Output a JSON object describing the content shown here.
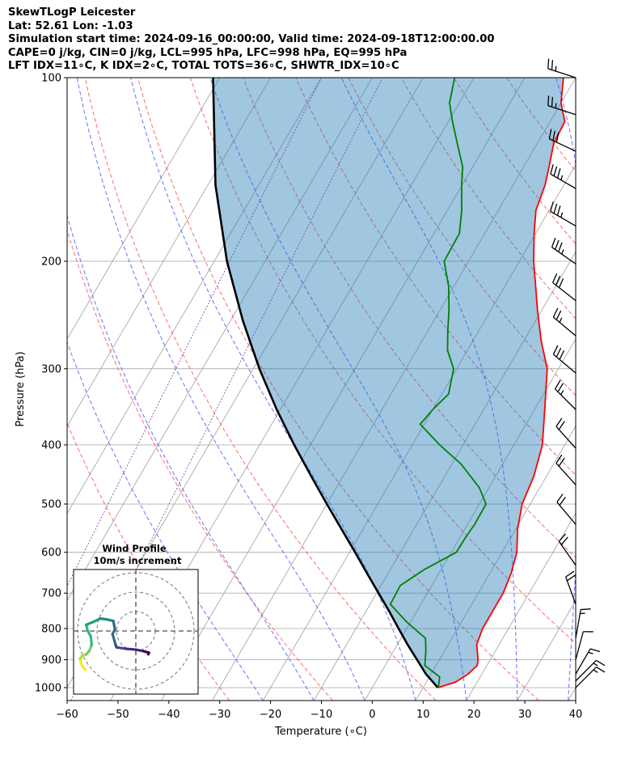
{
  "header": {
    "title": "SkewTLogP Leicester",
    "latlon": "Lat: 52.61   Lon: -1.03",
    "times": "Simulation start time: 2024-09-16_00:00:00, Valid time: 2024-09-18T12:00:00.00",
    "indices1": "CAPE=0 j/kg, CIN=0 j/kg, LCL=995 hPa, LFC=998 hPa, EQ=995 hPa",
    "indices2": "LFT IDX=11∘C, K IDX=2∘C, TOTAL TOTS=36∘C, SHWTR_IDX=10∘C"
  },
  "chart_data": {
    "type": "skewt",
    "xlabel": "Temperature (∘C)",
    "ylabel": "Pressure (hPa)",
    "xlim": [
      -60,
      40
    ],
    "ylim": [
      1050,
      100
    ],
    "x_ticks": [
      -60,
      -50,
      -40,
      -30,
      -20,
      -10,
      0,
      10,
      20,
      30,
      40
    ],
    "x_tick_labels": [
      "−60",
      "−50",
      "−40",
      "−30",
      "−20",
      "−10",
      "0",
      "10",
      "20",
      "30",
      "40"
    ],
    "y_ticks": [
      1000,
      900,
      800,
      700,
      600,
      500,
      400,
      300,
      200,
      100
    ],
    "y_tick_labels": [
      "1000",
      "900",
      "800",
      "700",
      "600",
      "500",
      "400",
      "300",
      "200",
      "100"
    ],
    "skew_ref_pressure": 1000,
    "skew_deg_per_decade": 70,
    "temperature": {
      "color": "#ff0000",
      "points": [
        [
          1000,
          12.9
        ],
        [
          980,
          15.7
        ],
        [
          950,
          17.3
        ],
        [
          920,
          18.1
        ],
        [
          900,
          17.6
        ],
        [
          850,
          15.6
        ],
        [
          800,
          14.9
        ],
        [
          700,
          14.9
        ],
        [
          650,
          14.2
        ],
        [
          600,
          12.9
        ],
        [
          550,
          10.4
        ],
        [
          500,
          8.4
        ],
        [
          450,
          7.5
        ],
        [
          400,
          5.6
        ],
        [
          350,
          2.0
        ],
        [
          300,
          -2.2
        ],
        [
          270,
          -6.6
        ],
        [
          240,
          -10.9
        ],
        [
          220,
          -13.9
        ],
        [
          200,
          -17.2
        ],
        [
          180,
          -20.3
        ],
        [
          165,
          -22.6
        ],
        [
          150,
          -23.7
        ],
        [
          140,
          -25.0
        ],
        [
          128,
          -26.8
        ],
        [
          118,
          -27.1
        ],
        [
          110,
          -30.0
        ],
        [
          100,
          -32.4
        ]
      ]
    },
    "dewpoint": {
      "color": "#008000",
      "points": [
        [
          1000,
          13.0
        ],
        [
          960,
          12.0
        ],
        [
          920,
          7.8
        ],
        [
          870,
          6.3
        ],
        [
          830,
          4.8
        ],
        [
          780,
          -0.8
        ],
        [
          730,
          -6.0
        ],
        [
          680,
          -6.2
        ],
        [
          640,
          -3.3
        ],
        [
          600,
          1.0
        ],
        [
          570,
          1.1
        ],
        [
          540,
          1.4
        ],
        [
          500,
          1.3
        ],
        [
          470,
          -1.9
        ],
        [
          430,
          -8.2
        ],
        [
          400,
          -14.6
        ],
        [
          370,
          -20.8
        ],
        [
          350,
          -20.0
        ],
        [
          330,
          -18.7
        ],
        [
          300,
          -20.6
        ],
        [
          280,
          -23.9
        ],
        [
          260,
          -26.1
        ],
        [
          240,
          -28.3
        ],
        [
          220,
          -31.0
        ],
        [
          200,
          -34.8
        ],
        [
          180,
          -35.0
        ],
        [
          165,
          -37.2
        ],
        [
          150,
          -40.1
        ],
        [
          140,
          -42.0
        ],
        [
          128,
          -45.8
        ],
        [
          118,
          -49.2
        ],
        [
          110,
          -51.9
        ],
        [
          100,
          -53.8
        ]
      ]
    },
    "parcel": {
      "color": "#000000",
      "points": [
        [
          1000,
          12.9
        ],
        [
          950,
          9.0
        ],
        [
          900,
          5.6
        ],
        [
          850,
          2.0
        ],
        [
          800,
          -1.6
        ],
        [
          750,
          -5.4
        ],
        [
          700,
          -9.6
        ],
        [
          650,
          -14.1
        ],
        [
          600,
          -18.9
        ],
        [
          550,
          -24.2
        ],
        [
          500,
          -30.0
        ],
        [
          450,
          -36.3
        ],
        [
          400,
          -43.2
        ],
        [
          350,
          -50.7
        ],
        [
          300,
          -58.8
        ],
        [
          250,
          -67.6
        ],
        [
          200,
          -77.5
        ],
        [
          150,
          -88.5
        ],
        [
          100,
          -101.3
        ]
      ]
    },
    "cape_shading": {
      "color": "#1f77b4",
      "opacity": 0.42
    },
    "dry_adiabats_theta_c": [
      -30,
      -10,
      10,
      30,
      50,
      70,
      90,
      110,
      130,
      150,
      170
    ],
    "moist_adiabats_start_c": [
      -20,
      -10,
      0,
      10,
      20,
      30,
      40
    ],
    "isotherm_ticks_c": [
      -100,
      -90,
      -80,
      -70,
      -60,
      -50,
      -40,
      -30,
      -20,
      -10,
      0,
      10,
      20,
      30,
      40
    ],
    "wind_barbs": [
      {
        "p": 100,
        "spd": 27,
        "dir": 288
      },
      {
        "p": 115,
        "spd": 27,
        "dir": 288
      },
      {
        "p": 132,
        "spd": 32,
        "dir": 295
      },
      {
        "p": 152,
        "spd": 38,
        "dir": 300
      },
      {
        "p": 175,
        "spd": 38,
        "dir": 300
      },
      {
        "p": 202,
        "spd": 36,
        "dir": 305
      },
      {
        "p": 232,
        "spd": 32,
        "dir": 308
      },
      {
        "p": 265,
        "spd": 27,
        "dir": 310
      },
      {
        "p": 305,
        "spd": 33,
        "dir": 310
      },
      {
        "p": 350,
        "spd": 27,
        "dir": 315
      },
      {
        "p": 405,
        "spd": 22,
        "dir": 318
      },
      {
        "p": 465,
        "spd": 22,
        "dir": 318
      },
      {
        "p": 540,
        "spd": 22,
        "dir": 320
      },
      {
        "p": 630,
        "spd": 22,
        "dir": 325
      },
      {
        "p": 730,
        "spd": 22,
        "dir": 340
      },
      {
        "p": 830,
        "spd": 15,
        "dir": 10
      },
      {
        "p": 900,
        "spd": 12,
        "dir": 15
      },
      {
        "p": 950,
        "spd": 16,
        "dir": 30
      },
      {
        "p": 975,
        "spd": 18,
        "dir": 45
      },
      {
        "p": 1000,
        "spd": 18,
        "dir": 45
      }
    ],
    "wind_profile": {
      "title": "Wind Profile",
      "subtitle": "10m/s increment",
      "rings_ms": [
        10,
        20,
        30
      ],
      "cmap": "viridis",
      "hodograph_uv": [
        [
          -6.5,
          -5.0
        ],
        [
          -6.9,
          -4.5
        ],
        [
          -7.1,
          -4.0
        ],
        [
          -7.2,
          -3.6
        ],
        [
          -6.9,
          -3.2
        ],
        [
          -6.4,
          -3.0
        ],
        [
          -6.0,
          -2.6
        ],
        [
          -5.7,
          -1.8
        ],
        [
          -5.8,
          -0.7
        ],
        [
          -6.2,
          0.0
        ],
        [
          -6.4,
          0.8
        ],
        [
          -5.4,
          1.2
        ],
        [
          -4.6,
          1.6
        ],
        [
          -3.8,
          1.5
        ],
        [
          -2.9,
          1.3
        ],
        [
          -2.7,
          0.2
        ],
        [
          -3.0,
          -0.4
        ],
        [
          -2.6,
          -1.8
        ],
        [
          -2.5,
          -2.1
        ],
        [
          -1.2,
          -2.3
        ],
        [
          0.0,
          -2.4
        ],
        [
          1.0,
          -2.6
        ],
        [
          1.7,
          -2.8
        ],
        [
          1.6,
          -3.0
        ]
      ]
    }
  }
}
